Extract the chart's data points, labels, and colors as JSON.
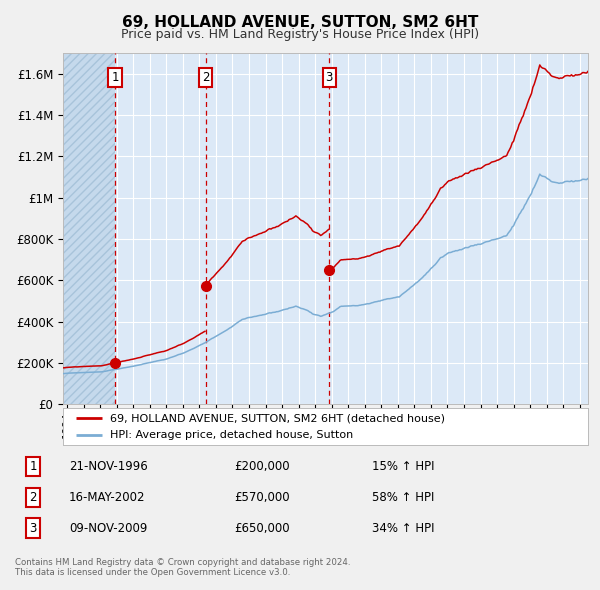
{
  "title": "69, HOLLAND AVENUE, SUTTON, SM2 6HT",
  "subtitle": "Price paid vs. HM Land Registry's House Price Index (HPI)",
  "background_color": "#f0f0f0",
  "plot_bg_color": "#dce9f7",
  "grid_color": "#ffffff",
  "red_line_color": "#cc0000",
  "blue_line_color": "#7badd4",
  "sale_marker_color": "#cc0000",
  "dashed_line_color": "#cc0000",
  "ylim": [
    0,
    1700000
  ],
  "yticks": [
    0,
    200000,
    400000,
    600000,
    800000,
    1000000,
    1200000,
    1400000,
    1600000
  ],
  "xlim_start": 1993.75,
  "xlim_end": 2025.5,
  "sales": [
    {
      "label": "1",
      "date": 1996.9,
      "price": 200000
    },
    {
      "label": "2",
      "date": 2002.37,
      "price": 570000
    },
    {
      "label": "3",
      "date": 2009.85,
      "price": 650000
    }
  ],
  "sale_table": [
    {
      "num": "1",
      "date": "21-NOV-1996",
      "price": "£200,000",
      "hpi": "15% ↑ HPI"
    },
    {
      "num": "2",
      "date": "16-MAY-2002",
      "price": "£570,000",
      "hpi": "58% ↑ HPI"
    },
    {
      "num": "3",
      "date": "09-NOV-2009",
      "price": "£650,000",
      "hpi": "34% ↑ HPI"
    }
  ],
  "legend_entries": [
    "69, HOLLAND AVENUE, SUTTON, SM2 6HT (detached house)",
    "HPI: Average price, detached house, Sutton"
  ],
  "footer_text": "Contains HM Land Registry data © Crown copyright and database right 2024.\nThis data is licensed under the Open Government Licence v3.0."
}
